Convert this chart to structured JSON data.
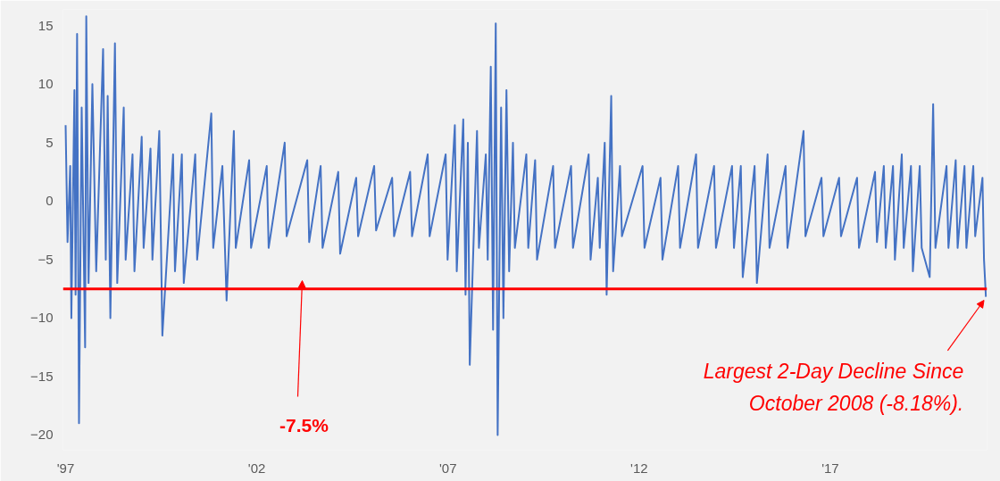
{
  "chart_data": {
    "type": "line",
    "x": [
      1997.0,
      1997.05,
      1997.12,
      1997.15,
      1997.23,
      1997.26,
      1997.3,
      1997.35,
      1997.42,
      1997.51,
      1997.54,
      1997.6,
      1997.7,
      1997.8,
      1997.98,
      1998.05,
      1998.1,
      1998.17,
      1998.29,
      1998.35,
      1998.52,
      1998.57,
      1998.75,
      1998.8,
      1998.99,
      1999.04,
      1999.22,
      1999.27,
      1999.45,
      1999.53,
      1999.81,
      1999.86,
      2000.04,
      2000.09,
      2000.39,
      2000.44,
      2000.81,
      2000.86,
      2001.1,
      2001.21,
      2001.4,
      2001.45,
      2001.8,
      2001.85,
      2002.26,
      2002.31,
      2002.73,
      2002.78,
      2003.32,
      2003.37,
      2003.67,
      2003.72,
      2004.13,
      2004.18,
      2004.6,
      2004.65,
      2005.07,
      2005.12,
      2005.54,
      2005.59,
      2006.01,
      2006.06,
      2006.47,
      2006.52,
      2006.94,
      2006.99,
      2007.18,
      2007.23,
      2007.4,
      2007.46,
      2007.52,
      2007.57,
      2007.76,
      2007.81,
      2007.99,
      2008.04,
      2008.12,
      2008.18,
      2008.25,
      2008.3,
      2008.39,
      2008.45,
      2008.53,
      2008.6,
      2008.7,
      2008.75,
      2009.05,
      2009.1,
      2009.28,
      2009.33,
      2009.75,
      2009.8,
      2010.22,
      2010.27,
      2010.68,
      2010.73,
      2010.92,
      2010.97,
      2011.1,
      2011.15,
      2011.27,
      2011.32,
      2011.5,
      2011.55,
      2012.09,
      2012.14,
      2012.56,
      2012.61,
      2013.02,
      2013.07,
      2013.49,
      2013.54,
      2013.96,
      2014.01,
      2014.43,
      2014.48,
      2014.66,
      2014.71,
      2015.02,
      2015.08,
      2015.36,
      2015.41,
      2015.83,
      2015.88,
      2016.3,
      2016.35,
      2016.77,
      2016.82,
      2017.23,
      2017.28,
      2017.7,
      2017.75,
      2018.17,
      2018.22,
      2018.4,
      2018.45,
      2018.64,
      2018.69,
      2018.87,
      2018.92,
      2019.11,
      2019.16,
      2019.34,
      2019.39,
      2019.6,
      2019.69,
      2019.75,
      2020.04,
      2020.09,
      2020.28,
      2020.33,
      2020.51,
      2020.56,
      2020.74,
      2020.79,
      2020.98,
      2021.02,
      2021.07
    ],
    "series": [
      {
        "color": "#4472c4",
        "values": [
          6.5,
          -3.5,
          3,
          -10,
          9.5,
          -8,
          14.3,
          -19,
          8,
          -12.5,
          15.8,
          -7,
          10,
          -6,
          13,
          -5,
          9,
          -10,
          13.5,
          -7,
          8,
          -5,
          4,
          -6,
          5.5,
          -4,
          4.5,
          -5,
          6,
          -11.5,
          4,
          -6,
          4,
          -7,
          4,
          -5,
          7.5,
          -4,
          3,
          -8.5,
          6,
          -4,
          3.5,
          -4,
          3,
          -4,
          5,
          -3,
          3.5,
          -3.5,
          3,
          -4,
          2.5,
          -4.5,
          2,
          -3,
          3,
          -2.5,
          2,
          -3,
          2.5,
          -3,
          4,
          -3,
          4,
          -5,
          6.5,
          -6,
          7,
          -8,
          5,
          -14,
          6,
          -4,
          4,
          -5,
          11.5,
          -11,
          15.2,
          -20,
          8,
          -10,
          9.5,
          -6,
          5,
          -4,
          4,
          -4,
          3.5,
          -5,
          3,
          -4,
          3,
          -4,
          4,
          -5,
          2,
          -4,
          5,
          -8,
          9,
          -6,
          3,
          -3,
          3,
          -4,
          2,
          -5,
          3,
          -4,
          4,
          -4,
          3,
          -4,
          3,
          -4,
          3,
          -6.5,
          3,
          -7,
          4,
          -4,
          3,
          -4,
          6,
          -3,
          2,
          -3,
          2,
          -3,
          2,
          -4,
          2.5,
          -3.5,
          3,
          -4,
          3,
          -5,
          4,
          -4,
          3,
          -6,
          3,
          -4,
          -6.5,
          8.3,
          -4,
          3,
          -4,
          3.5,
          -4,
          3,
          -4,
          3,
          -3,
          2,
          -5,
          -8.18
        ]
      }
    ],
    "xlim": [
      1996.93,
      2021.1
    ],
    "xticks": [
      {
        "value": 1997,
        "label": "'97"
      },
      {
        "value": 2002,
        "label": "'02"
      },
      {
        "value": 2007,
        "label": "'07"
      },
      {
        "value": 2012,
        "label": "'12"
      },
      {
        "value": 2017,
        "label": "'17"
      }
    ],
    "ylim": [
      -21.3,
      16.4
    ],
    "yticks": [
      -20,
      -15,
      -10,
      -5,
      0,
      5,
      10,
      15
    ],
    "ref_lines": [
      {
        "axis": "y",
        "value": -7.5,
        "color": "#ff0000"
      }
    ],
    "annotations": [
      "-7.5%",
      {
        "text": "Largest 2-Day Decline Since October 2008 (-8.18%).",
        "x": 2021.07,
        "y": -8.18
      }
    ],
    "grid": false
  }
}
